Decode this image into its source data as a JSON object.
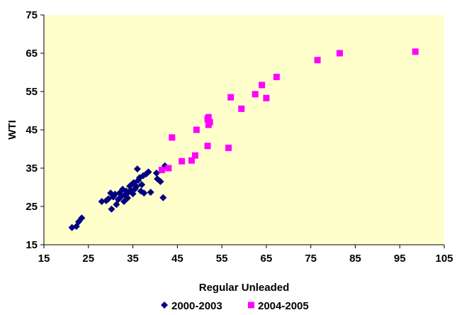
{
  "chart_data": {
    "type": "scatter",
    "xlabel": "Regular Unleaded",
    "ylabel": "WTI",
    "xlim": [
      15,
      105
    ],
    "ylim": [
      15,
      75
    ],
    "xticks": [
      15,
      25,
      35,
      45,
      55,
      65,
      75,
      85,
      95,
      105
    ],
    "yticks": [
      15,
      25,
      35,
      45,
      55,
      65,
      75
    ],
    "grid": false,
    "plot_background": "#ffffcc",
    "legend_position": "bottom",
    "series": [
      {
        "name": "2000-2003",
        "marker": "diamond",
        "color": "#000080",
        "points": [
          [
            21.3,
            19.5
          ],
          [
            22.3,
            19.8
          ],
          [
            22.8,
            21.0
          ],
          [
            23.5,
            22.0
          ],
          [
            28.0,
            26.3
          ],
          [
            29.0,
            26.5
          ],
          [
            29.5,
            27.0
          ],
          [
            30.0,
            28.5
          ],
          [
            30.2,
            24.3
          ],
          [
            30.6,
            27.5
          ],
          [
            31.0,
            28.2
          ],
          [
            31.3,
            25.5
          ],
          [
            31.7,
            26.8
          ],
          [
            32.0,
            28.5
          ],
          [
            32.3,
            27.5
          ],
          [
            32.7,
            29.5
          ],
          [
            33.0,
            26.3
          ],
          [
            33.2,
            28.0
          ],
          [
            33.5,
            29.0
          ],
          [
            33.8,
            27.2
          ],
          [
            34.0,
            28.7
          ],
          [
            34.3,
            30.3
          ],
          [
            34.5,
            29.2
          ],
          [
            34.8,
            30.8
          ],
          [
            35.0,
            28.3
          ],
          [
            35.2,
            31.2
          ],
          [
            35.5,
            29.6
          ],
          [
            35.8,
            30.2
          ],
          [
            36.0,
            34.8
          ],
          [
            36.2,
            31.8
          ],
          [
            36.5,
            32.5
          ],
          [
            36.8,
            29.0
          ],
          [
            37.0,
            30.7
          ],
          [
            37.3,
            33.0
          ],
          [
            37.5,
            28.5
          ],
          [
            38.0,
            33.5
          ],
          [
            38.5,
            34.0
          ],
          [
            39.0,
            28.7
          ],
          [
            40.3,
            33.7
          ],
          [
            40.5,
            32.2
          ],
          [
            41.2,
            31.5
          ],
          [
            41.8,
            27.3
          ],
          [
            42.2,
            35.6
          ]
        ]
      },
      {
        "name": "2004-2005",
        "marker": "square",
        "color": "#ff00ff",
        "points": [
          [
            41.5,
            34.5
          ],
          [
            43.0,
            35.0
          ],
          [
            43.8,
            43.0
          ],
          [
            46.0,
            36.8
          ],
          [
            48.2,
            37.0
          ],
          [
            49.0,
            38.3
          ],
          [
            49.3,
            45.0
          ],
          [
            51.8,
            40.8
          ],
          [
            51.8,
            47.8
          ],
          [
            52.0,
            48.3
          ],
          [
            52.0,
            46.3
          ],
          [
            52.3,
            47.0
          ],
          [
            56.5,
            40.3
          ],
          [
            57.0,
            53.5
          ],
          [
            59.4,
            50.5
          ],
          [
            62.5,
            54.3
          ],
          [
            64.0,
            56.7
          ],
          [
            65.0,
            53.3
          ],
          [
            67.3,
            58.8
          ],
          [
            76.5,
            63.2
          ],
          [
            81.5,
            65.0
          ],
          [
            98.5,
            65.4
          ]
        ]
      }
    ]
  }
}
